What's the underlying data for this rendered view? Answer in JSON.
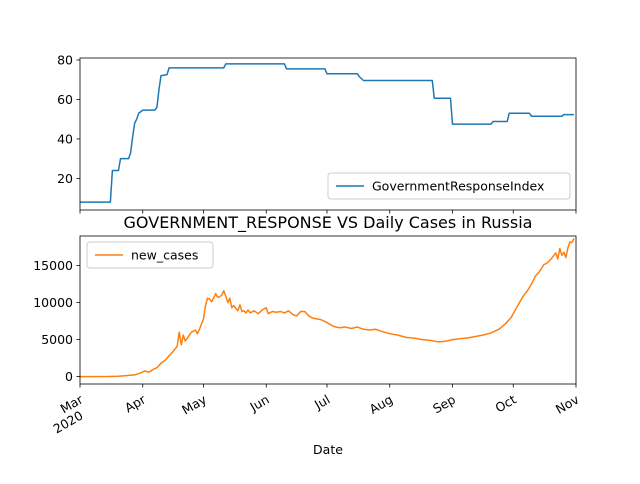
{
  "chart_data": [
    {
      "type": "line",
      "title": "",
      "xlabel": "",
      "ylabel": "",
      "ylim": [
        4,
        81
      ],
      "yticks": [
        20,
        40,
        60,
        80
      ],
      "grid": false,
      "legend_position": "lower-right",
      "series": [
        {
          "name": "GovernmentResponseIndex",
          "color": "#1f77b4",
          "points": [
            [
              "2020-03-01",
              8
            ],
            [
              "2020-03-16",
              8
            ],
            [
              "2020-03-17",
              24
            ],
            [
              "2020-03-19",
              24
            ],
            [
              "2020-03-20",
              24
            ],
            [
              "2020-03-21",
              30
            ],
            [
              "2020-03-25",
              30
            ],
            [
              "2020-03-26",
              33
            ],
            [
              "2020-03-27",
              41
            ],
            [
              "2020-03-28",
              48
            ],
            [
              "2020-03-29",
              50
            ],
            [
              "2020-03-30",
              53
            ],
            [
              "2020-04-01",
              54.6
            ],
            [
              "2020-04-07",
              54.6
            ],
            [
              "2020-04-08",
              56
            ],
            [
              "2020-04-09",
              65
            ],
            [
              "2020-04-10",
              72
            ],
            [
              "2020-04-13",
              72.6
            ],
            [
              "2020-04-14",
              76
            ],
            [
              "2020-05-11",
              76
            ],
            [
              "2020-05-12",
              78
            ],
            [
              "2020-06-10",
              78
            ],
            [
              "2020-06-11",
              75.5
            ],
            [
              "2020-06-30",
              75.5
            ],
            [
              "2020-07-01",
              73
            ],
            [
              "2020-07-16",
              73
            ],
            [
              "2020-07-17",
              71.5
            ],
            [
              "2020-07-19",
              69.6
            ],
            [
              "2020-08-22",
              69.6
            ],
            [
              "2020-08-23",
              60.6
            ],
            [
              "2020-08-31",
              60.6
            ],
            [
              "2020-09-01",
              47.5
            ],
            [
              "2020-09-20",
              47.5
            ],
            [
              "2020-09-21",
              48.8
            ],
            [
              "2020-09-28",
              48.8
            ],
            [
              "2020-09-29",
              53
            ],
            [
              "2020-10-09",
              53
            ],
            [
              "2020-10-10",
              51.5
            ],
            [
              "2020-10-25",
              51.5
            ],
            [
              "2020-10-26",
              52.3
            ],
            [
              "2020-10-31",
              52.3
            ]
          ]
        }
      ]
    },
    {
      "type": "line",
      "title": "GOVERNMENT_RESPONSE VS Daily Cases in Russia",
      "xlabel": "Date",
      "ylabel": "",
      "ylim": [
        -1000,
        19000
      ],
      "yticks": [
        0,
        5000,
        10000,
        15000
      ],
      "xlim": [
        "2020-03-01",
        "2020-10-31"
      ],
      "x_tick_labels": [
        {
          "date": "2020-03-01",
          "label": "Mar",
          "sub": "2020"
        },
        {
          "date": "2020-04-01",
          "label": "Apr",
          "sub": ""
        },
        {
          "date": "2020-05-01",
          "label": "May",
          "sub": ""
        },
        {
          "date": "2020-06-01",
          "label": "Jun",
          "sub": ""
        },
        {
          "date": "2020-07-01",
          "label": "Jul",
          "sub": ""
        },
        {
          "date": "2020-08-01",
          "label": "Aug",
          "sub": ""
        },
        {
          "date": "2020-09-01",
          "label": "Sep",
          "sub": ""
        },
        {
          "date": "2020-10-01",
          "label": "Oct",
          "sub": ""
        },
        {
          "date": "2020-11-01",
          "label": "Nov",
          "sub": ""
        }
      ],
      "grid": false,
      "legend_position": "upper-left",
      "series": [
        {
          "name": "new_cases",
          "color": "#ff7f0e",
          "points": [
            [
              "2020-03-01",
              0
            ],
            [
              "2020-03-15",
              10
            ],
            [
              "2020-03-20",
              50
            ],
            [
              "2020-03-25",
              160
            ],
            [
              "2020-03-28",
              230
            ],
            [
              "2020-03-31",
              500
            ],
            [
              "2020-04-02",
              770
            ],
            [
              "2020-04-04",
              600
            ],
            [
              "2020-04-06",
              950
            ],
            [
              "2020-04-08",
              1200
            ],
            [
              "2020-04-10",
              1800
            ],
            [
              "2020-04-12",
              2200
            ],
            [
              "2020-04-14",
              2800
            ],
            [
              "2020-04-16",
              3400
            ],
            [
              "2020-04-18",
              4100
            ],
            [
              "2020-04-19",
              6000
            ],
            [
              "2020-04-20",
              4300
            ],
            [
              "2020-04-21",
              5600
            ],
            [
              "2020-04-22",
              4800
            ],
            [
              "2020-04-23",
              5200
            ],
            [
              "2020-04-25",
              6000
            ],
            [
              "2020-04-27",
              6300
            ],
            [
              "2020-04-28",
              5800
            ],
            [
              "2020-04-29",
              6400
            ],
            [
              "2020-05-01",
              7800
            ],
            [
              "2020-05-02",
              9600
            ],
            [
              "2020-05-03",
              10600
            ],
            [
              "2020-05-04",
              10500
            ],
            [
              "2020-05-05",
              10100
            ],
            [
              "2020-05-06",
              10600
            ],
            [
              "2020-05-07",
              11200
            ],
            [
              "2020-05-08",
              10700
            ],
            [
              "2020-05-09",
              10800
            ],
            [
              "2020-05-10",
              11000
            ],
            [
              "2020-05-11",
              11600
            ],
            [
              "2020-05-12",
              10900
            ],
            [
              "2020-05-13",
              10000
            ],
            [
              "2020-05-14",
              10600
            ],
            [
              "2020-05-15",
              9300
            ],
            [
              "2020-05-16",
              9600
            ],
            [
              "2020-05-17",
              9200
            ],
            [
              "2020-05-18",
              8900
            ],
            [
              "2020-05-19",
              9700
            ],
            [
              "2020-05-20",
              8800
            ],
            [
              "2020-05-21",
              8900
            ],
            [
              "2020-05-22",
              8600
            ],
            [
              "2020-05-23",
              9000
            ],
            [
              "2020-05-24",
              8600
            ],
            [
              "2020-05-26",
              8900
            ],
            [
              "2020-05-28",
              8500
            ],
            [
              "2020-05-30",
              9000
            ],
            [
              "2020-06-01",
              9300
            ],
            [
              "2020-06-02",
              8500
            ],
            [
              "2020-06-04",
              8800
            ],
            [
              "2020-06-06",
              8700
            ],
            [
              "2020-06-08",
              8800
            ],
            [
              "2020-06-10",
              8600
            ],
            [
              "2020-06-12",
              8900
            ],
            [
              "2020-06-14",
              8400
            ],
            [
              "2020-06-16",
              8200
            ],
            [
              "2020-06-18",
              8800
            ],
            [
              "2020-06-20",
              8800
            ],
            [
              "2020-06-22",
              8200
            ],
            [
              "2020-06-24",
              7900
            ],
            [
              "2020-06-26",
              7800
            ],
            [
              "2020-06-28",
              7700
            ],
            [
              "2020-07-01",
              7300
            ],
            [
              "2020-07-04",
              6800
            ],
            [
              "2020-07-07",
              6600
            ],
            [
              "2020-07-10",
              6700
            ],
            [
              "2020-07-13",
              6500
            ],
            [
              "2020-07-16",
              6700
            ],
            [
              "2020-07-19",
              6400
            ],
            [
              "2020-07-22",
              6300
            ],
            [
              "2020-07-25",
              6400
            ],
            [
              "2020-07-28",
              6100
            ],
            [
              "2020-08-01",
              5800
            ],
            [
              "2020-08-05",
              5600
            ],
            [
              "2020-08-09",
              5300
            ],
            [
              "2020-08-13",
              5200
            ],
            [
              "2020-08-17",
              5000
            ],
            [
              "2020-08-21",
              4900
            ],
            [
              "2020-08-25",
              4700
            ],
            [
              "2020-08-29",
              4800
            ],
            [
              "2020-09-01",
              5000
            ],
            [
              "2020-09-04",
              5100
            ],
            [
              "2020-09-08",
              5200
            ],
            [
              "2020-09-12",
              5400
            ],
            [
              "2020-09-16",
              5600
            ],
            [
              "2020-09-20",
              5900
            ],
            [
              "2020-09-24",
              6400
            ],
            [
              "2020-09-27",
              7100
            ],
            [
              "2020-09-30",
              8000
            ],
            [
              "2020-10-03",
              9500
            ],
            [
              "2020-10-06",
              10900
            ],
            [
              "2020-10-08",
              11600
            ],
            [
              "2020-10-10",
              12500
            ],
            [
              "2020-10-12",
              13600
            ],
            [
              "2020-10-14",
              14200
            ],
            [
              "2020-10-16",
              15100
            ],
            [
              "2020-10-18",
              15400
            ],
            [
              "2020-10-20",
              16000
            ],
            [
              "2020-10-22",
              16700
            ],
            [
              "2020-10-23",
              15900
            ],
            [
              "2020-10-24",
              17300
            ],
            [
              "2020-10-25",
              16400
            ],
            [
              "2020-10-26",
              16800
            ],
            [
              "2020-10-27",
              16100
            ],
            [
              "2020-10-28",
              17400
            ],
            [
              "2020-10-29",
              18200
            ],
            [
              "2020-10-30",
              18100
            ],
            [
              "2020-10-31",
              18700
            ]
          ]
        }
      ]
    }
  ]
}
